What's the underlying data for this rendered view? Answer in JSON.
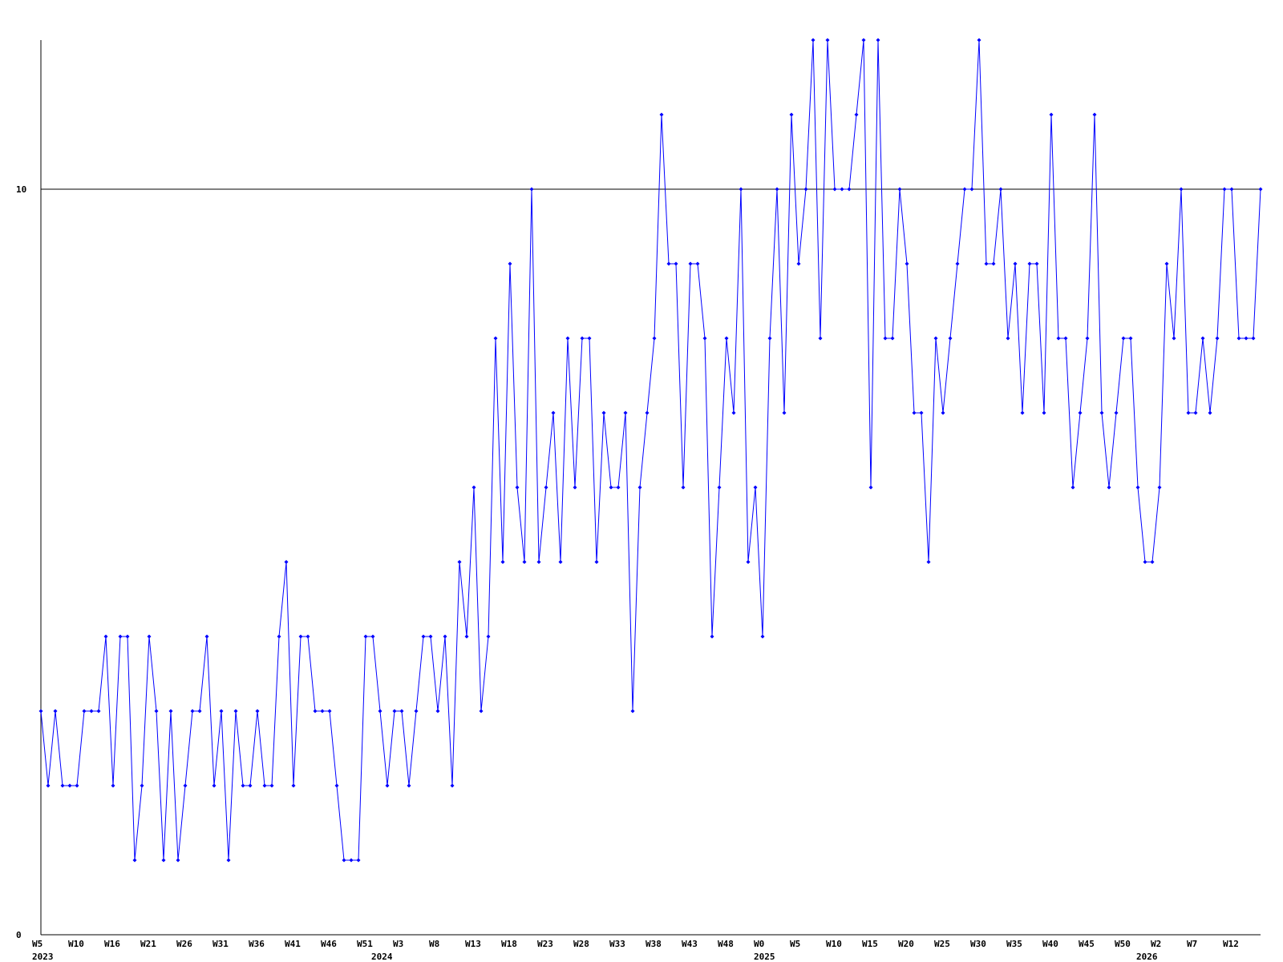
{
  "chart_data": {
    "type": "line",
    "categories": [
      "W5",
      null,
      null,
      null,
      null,
      "W10",
      null,
      null,
      null,
      null,
      "W16",
      null,
      null,
      null,
      null,
      "W21",
      null,
      null,
      null,
      null,
      "W26",
      null,
      null,
      null,
      null,
      "W31",
      null,
      null,
      null,
      null,
      "W36",
      null,
      null,
      null,
      null,
      "W41",
      null,
      null,
      null,
      null,
      "W46",
      null,
      null,
      null,
      null,
      "W51",
      null,
      null,
      null,
      null,
      "W3",
      null,
      null,
      null,
      null,
      "W8",
      null,
      null,
      null,
      null,
      "W13",
      null,
      null,
      null,
      null,
      "W18",
      null,
      null,
      null,
      null,
      "W23",
      null,
      null,
      null,
      null,
      "W28",
      null,
      null,
      null,
      null,
      "W33",
      null,
      null,
      null,
      null,
      "W38",
      null,
      null,
      null,
      null,
      "W43",
      null,
      null,
      null,
      null,
      "W48",
      null,
      null,
      null,
      null,
      "W0",
      null,
      null,
      null,
      null,
      "W5",
      null,
      null,
      null,
      null,
      "W10",
      null,
      null,
      null,
      null,
      "W15",
      null,
      null,
      null,
      null,
      "W20",
      null,
      null,
      null,
      null,
      "W25",
      null,
      null,
      null,
      null,
      "W30",
      null,
      null,
      null,
      null,
      "W35",
      null,
      null,
      null,
      null,
      "W40",
      null,
      null,
      null,
      null,
      "W45",
      null,
      null,
      null,
      null,
      "W50",
      null,
      null,
      null,
      null,
      "W2",
      null,
      null,
      null,
      null,
      "W7",
      null,
      null,
      null,
      null,
      "W12",
      null,
      null,
      null,
      null
    ],
    "year_labels": [
      {
        "index": 0,
        "label": "2023"
      },
      {
        "index": 47,
        "label": "2024"
      },
      {
        "index": 100,
        "label": "2025"
      },
      {
        "index": 153,
        "label": "2026"
      }
    ],
    "values": [
      3,
      2,
      3,
      2,
      2,
      2,
      3,
      3,
      3,
      4,
      2,
      4,
      4,
      1,
      2,
      4,
      3,
      1,
      3,
      1,
      2,
      3,
      3,
      4,
      2,
      3,
      1,
      3,
      2,
      2,
      3,
      2,
      2,
      4,
      5,
      2,
      4,
      4,
      3,
      3,
      3,
      2,
      1,
      1,
      1,
      4,
      4,
      3,
      2,
      3,
      3,
      2,
      3,
      4,
      4,
      3,
      4,
      2,
      5,
      4,
      6,
      3,
      4,
      8,
      5,
      9,
      6,
      5,
      10,
      5,
      6,
      7,
      5,
      8,
      6,
      8,
      8,
      5,
      7,
      6,
      6,
      7,
      3,
      6,
      7,
      8,
      11,
      9,
      9,
      6,
      9,
      9,
      8,
      4,
      6,
      8,
      7,
      10,
      5,
      6,
      4,
      8,
      10,
      7,
      11,
      9,
      10,
      12,
      8,
      12,
      10,
      10,
      10,
      11,
      12,
      6,
      12,
      8,
      8,
      10,
      9,
      7,
      7,
      5,
      8,
      7,
      8,
      9,
      10,
      10,
      12,
      9,
      9,
      10,
      8,
      9,
      7,
      9,
      9,
      7,
      11,
      8,
      8,
      6,
      7,
      8,
      11,
      7,
      6,
      7,
      8,
      8,
      6,
      5,
      5,
      6,
      9,
      8,
      10,
      7,
      7,
      8,
      7,
      8,
      10,
      10,
      8,
      8,
      8,
      10
    ],
    "color": "#0000ff",
    "ylim": [
      0,
      12
    ],
    "yticks": [
      0,
      10
    ],
    "grid": true
  }
}
